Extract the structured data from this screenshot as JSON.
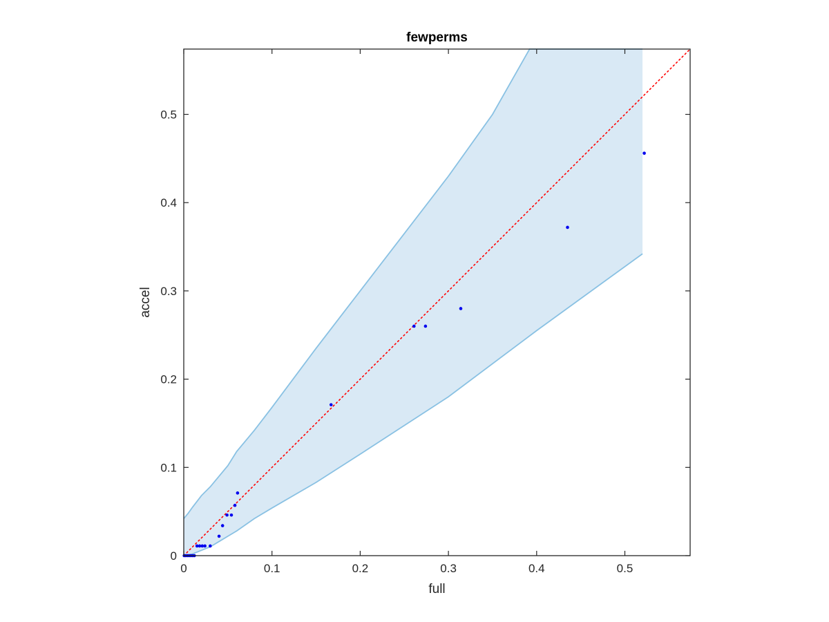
{
  "chart_data": {
    "type": "scatter",
    "title": "fewperms",
    "xlabel": "full",
    "ylabel": "accel",
    "xlim": [
      0,
      0.574
    ],
    "ylim": [
      0,
      0.574
    ],
    "xticks": [
      0,
      0.1,
      0.2,
      0.3,
      0.4,
      0.5
    ],
    "yticks": [
      0,
      0.1,
      0.2,
      0.3,
      0.4,
      0.5
    ],
    "xtick_labels": [
      "0",
      "0.1",
      "0.2",
      "0.3",
      "0.4",
      "0.5"
    ],
    "ytick_labels": [
      "0",
      "0.1",
      "0.2",
      "0.3",
      "0.4",
      "0.5"
    ],
    "grid": false,
    "colors": {
      "points": "#0000ee",
      "band_fill": "#d9e9f5",
      "band_edge": "#89c1e3",
      "reference_line": "#ff0000"
    },
    "confidence_band": {
      "upper": [
        [
          0,
          0.042
        ],
        [
          0.005,
          0.048
        ],
        [
          0.01,
          0.055
        ],
        [
          0.02,
          0.068
        ],
        [
          0.03,
          0.078
        ],
        [
          0.05,
          0.102
        ],
        [
          0.06,
          0.118
        ],
        [
          0.08,
          0.142
        ],
        [
          0.1,
          0.168
        ],
        [
          0.15,
          0.235
        ],
        [
          0.2,
          0.3
        ],
        [
          0.25,
          0.365
        ],
        [
          0.3,
          0.43
        ],
        [
          0.35,
          0.5
        ],
        [
          0.392,
          0.574
        ],
        [
          0.52,
          0.574
        ]
      ],
      "lower": [
        [
          0,
          0
        ],
        [
          0.01,
          0.002
        ],
        [
          0.02,
          0.006
        ],
        [
          0.03,
          0.01
        ],
        [
          0.04,
          0.016
        ],
        [
          0.05,
          0.022
        ],
        [
          0.06,
          0.028
        ],
        [
          0.08,
          0.042
        ],
        [
          0.1,
          0.054
        ],
        [
          0.15,
          0.083
        ],
        [
          0.2,
          0.115
        ],
        [
          0.3,
          0.18
        ],
        [
          0.4,
          0.255
        ],
        [
          0.52,
          0.342
        ]
      ]
    },
    "reference_line": {
      "x": [
        0,
        0.574
      ],
      "y": [
        0,
        0.574
      ],
      "style": "dotted"
    },
    "points": [
      {
        "x": 0.0005,
        "y": 0
      },
      {
        "x": 0.002,
        "y": 0
      },
      {
        "x": 0.004,
        "y": 0
      },
      {
        "x": 0.006,
        "y": 0
      },
      {
        "x": 0.008,
        "y": 0
      },
      {
        "x": 0.01,
        "y": 0
      },
      {
        "x": 0.012,
        "y": 0
      },
      {
        "x": 0.015,
        "y": 0.011
      },
      {
        "x": 0.018,
        "y": 0.011
      },
      {
        "x": 0.021,
        "y": 0.011
      },
      {
        "x": 0.024,
        "y": 0.011
      },
      {
        "x": 0.03,
        "y": 0.011
      },
      {
        "x": 0.04,
        "y": 0.022
      },
      {
        "x": 0.044,
        "y": 0.034
      },
      {
        "x": 0.049,
        "y": 0.046
      },
      {
        "x": 0.054,
        "y": 0.046
      },
      {
        "x": 0.058,
        "y": 0.057
      },
      {
        "x": 0.061,
        "y": 0.071
      },
      {
        "x": 0.167,
        "y": 0.171
      },
      {
        "x": 0.261,
        "y": 0.26
      },
      {
        "x": 0.274,
        "y": 0.26
      },
      {
        "x": 0.314,
        "y": 0.28
      },
      {
        "x": 0.435,
        "y": 0.372
      },
      {
        "x": 0.522,
        "y": 0.456
      }
    ]
  }
}
